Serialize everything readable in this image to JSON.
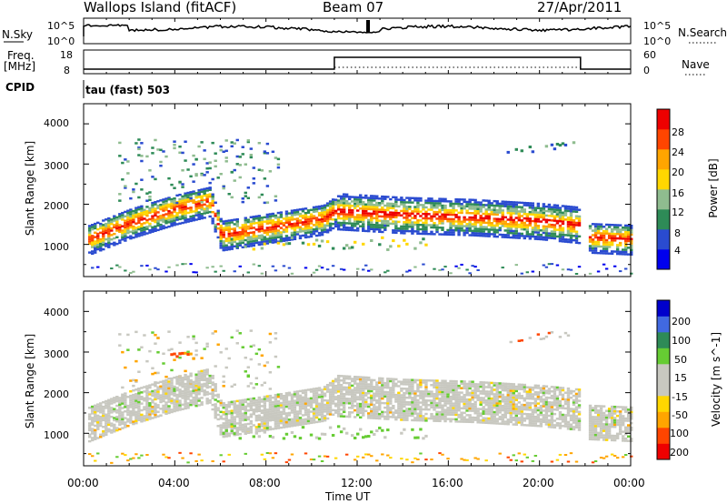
{
  "header": {
    "station": "Wallops Island (fitACF)",
    "beam": "Beam 07",
    "date": "27/Apr/2011"
  },
  "top_panels": {
    "nsky_label": "N.Sky",
    "nsky_ticks": [
      "10^5",
      "10^0"
    ],
    "nsearch_label": "N.Search",
    "nsearch_ticks": [
      "10^5",
      "10^0"
    ],
    "freq_label": "Freq.",
    "freq_unit": "[MHz]",
    "freq_ticks": [
      "18",
      "8"
    ],
    "nave_label": "Nave",
    "nave_ticks": [
      "60",
      "0"
    ],
    "cpid_label": "CPID",
    "cpid_value": "tau (fast) 503"
  },
  "colors": {
    "power_scale": [
      "#0000ee",
      "#2a4bd0",
      "#2e8b57",
      "#8fbc8f",
      "#ffd700",
      "#ffa500",
      "#ff4500",
      "#ee0000"
    ],
    "velocity_scale": [
      "#ee0000",
      "#ff4500",
      "#ffa500",
      "#ffd700",
      "#c8c8c0",
      "#c8c8c0",
      "#66cc33",
      "#2e8b57",
      "#4169e1",
      "#0000cc"
    ],
    "ground_scatter": "#c8c8c0"
  },
  "chart_data": [
    {
      "type": "heatmap",
      "ylabel": "Slant Range [km]",
      "ylim": [
        200,
        4500
      ],
      "yticks": [
        "1000",
        "2000",
        "3000",
        "4000"
      ],
      "x_range_hours": [
        0,
        24
      ],
      "colorbar": {
        "label": "Power [dB]",
        "ticks": [
          "4",
          "8",
          "12",
          "16",
          "20",
          "24",
          "28"
        ],
        "range": [
          0,
          32
        ]
      },
      "echo_band_main_km": [
        {
          "t": 0,
          "r": 1050
        },
        {
          "t": 2,
          "r": 1500
        },
        {
          "t": 4,
          "r": 1850
        },
        {
          "t": 5.5,
          "r": 2050
        },
        {
          "t": 6,
          "r": 1200
        },
        {
          "t": 10.5,
          "r": 1600
        },
        {
          "t": 11,
          "r": 1800
        },
        {
          "t": 14,
          "r": 1700
        },
        {
          "t": 17,
          "r": 1650
        },
        {
          "t": 20,
          "r": 1550
        },
        {
          "t": 21.8,
          "r": 1450
        },
        {
          "t": 22,
          "r": 1150
        },
        {
          "t": 24,
          "r": 1100
        }
      ]
    },
    {
      "type": "heatmap",
      "ylabel": "Slant Range [km]",
      "xlabel": "Time UT",
      "ylim": [
        200,
        4500
      ],
      "yticks": [
        "1000",
        "2000",
        "3000",
        "4000"
      ],
      "xticks": [
        "00:00",
        "04:00",
        "08:00",
        "12:00",
        "16:00",
        "20:00",
        "00:00"
      ],
      "x_range_hours": [
        0,
        24
      ],
      "colorbar": {
        "label": "Velocity [m s^-1]",
        "ticks": [
          "200",
          "100",
          "50",
          "15",
          "-15",
          "-50",
          "-100",
          "-200"
        ]
      }
    }
  ]
}
